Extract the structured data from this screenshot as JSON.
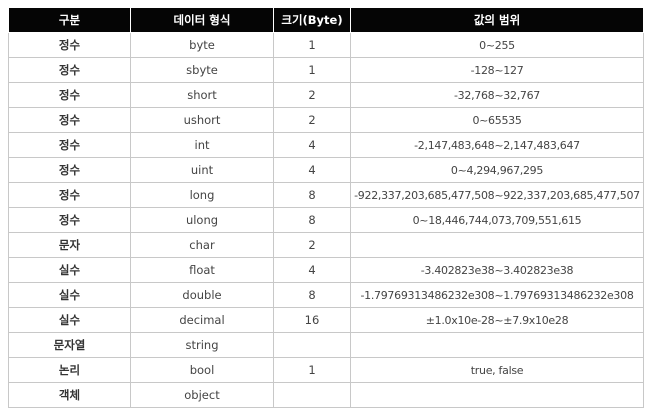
{
  "table": {
    "headers": [
      "구분",
      "데이터 형식",
      "크기(Byte)",
      "값의 범위"
    ],
    "rows": [
      {
        "category": "정수",
        "type": "byte",
        "size": "1",
        "range": "0~255"
      },
      {
        "category": "정수",
        "type": "sbyte",
        "size": "1",
        "range": "-128~127"
      },
      {
        "category": "정수",
        "type": "short",
        "size": "2",
        "range": "-32,768~32,767"
      },
      {
        "category": "정수",
        "type": "ushort",
        "size": "2",
        "range": "0~65535"
      },
      {
        "category": "정수",
        "type": "int",
        "size": "4",
        "range": "-2,147,483,648~2,147,483,647"
      },
      {
        "category": "정수",
        "type": "uint",
        "size": "4",
        "range": "0~4,294,967,295"
      },
      {
        "category": "정수",
        "type": "long",
        "size": "8",
        "range": "-922,337,203,685,477,508~922,337,203,685,477,507"
      },
      {
        "category": "정수",
        "type": "ulong",
        "size": "8",
        "range": "0~18,446,744,073,709,551,615"
      },
      {
        "category": "문자",
        "type": "char",
        "size": "2",
        "range": ""
      },
      {
        "category": "실수",
        "type": "float",
        "size": "4",
        "range": "-3.402823e38~3.402823e38"
      },
      {
        "category": "실수",
        "type": "double",
        "size": "8",
        "range": "-1.79769313486232e308~1.79769313486232e308"
      },
      {
        "category": "실수",
        "type": "decimal",
        "size": "16",
        "range": "±1.0x10e-28~±7.9x10e28"
      },
      {
        "category": "문자열",
        "type": "string",
        "size": "",
        "range": ""
      },
      {
        "category": "논리",
        "type": "bool",
        "size": "1",
        "range": "true, false"
      },
      {
        "category": "객체",
        "type": "object",
        "size": "",
        "range": ""
      }
    ]
  },
  "colors": {
    "header_background": "#050505",
    "header_text": "#ffffff",
    "border": "#c8c8c8",
    "body_text": "#444444"
  }
}
